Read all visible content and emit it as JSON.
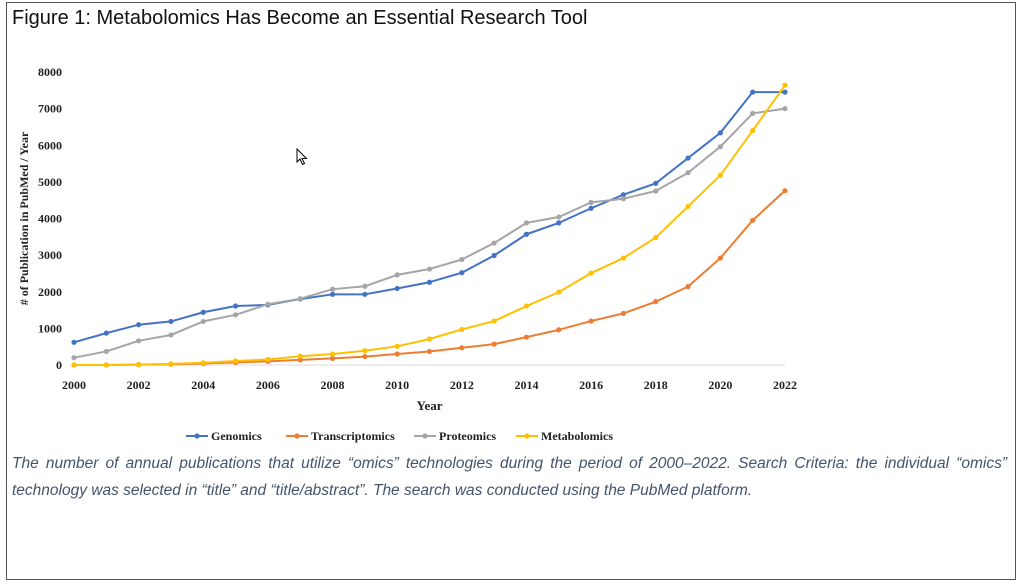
{
  "figure": {
    "title": "Figure 1: Metabolomics Has Become an Essential Research Tool",
    "caption": "The number of annual publications that utilize “omics” technologies during the period of 2000–2022. Search Criteria: the individual “omics” technology was selected in “title” and “title/abstract”. The search was conducted using the PubMed platform."
  },
  "chart_data": {
    "type": "line",
    "title": "",
    "xlabel": "Year",
    "ylabel": "# of Publication in PubMed / Year",
    "x": [
      2000,
      2001,
      2002,
      2003,
      2004,
      2005,
      2006,
      2007,
      2008,
      2009,
      2010,
      2011,
      2012,
      2013,
      2014,
      2015,
      2016,
      2017,
      2018,
      2019,
      2020,
      2021,
      2022
    ],
    "x_ticks": [
      "2000",
      "2002",
      "2004",
      "2006",
      "2008",
      "2010",
      "2012",
      "2014",
      "2016",
      "2018",
      "2020",
      "2022"
    ],
    "y_ticks": [
      "0",
      "1000",
      "2000",
      "3000",
      "4000",
      "5000",
      "6000",
      "7000",
      "8000"
    ],
    "xlim": [
      2000,
      2022
    ],
    "ylim": [
      0,
      8000
    ],
    "grid": false,
    "legend_position": "bottom",
    "series": [
      {
        "name": "Genomics",
        "color": "#4472c4",
        "values": [
          620,
          870,
          1100,
          1190,
          1440,
          1610,
          1640,
          1800,
          1930,
          1930,
          2090,
          2260,
          2520,
          2990,
          3570,
          3880,
          4280,
          4650,
          4960,
          5650,
          6340,
          7450,
          7450
        ]
      },
      {
        "name": "Transcriptomics",
        "color": "#ed7d31",
        "values": [
          0,
          0,
          10,
          20,
          40,
          70,
          100,
          140,
          180,
          230,
          300,
          370,
          470,
          570,
          760,
          960,
          1200,
          1410,
          1730,
          2140,
          2920,
          3950,
          4760
        ]
      },
      {
        "name": "Proteomics",
        "color": "#a5a5a5",
        "values": [
          200,
          370,
          660,
          820,
          1190,
          1370,
          1660,
          1810,
          2070,
          2150,
          2460,
          2620,
          2880,
          3330,
          3880,
          4040,
          4440,
          4540,
          4750,
          5250,
          5960,
          6870,
          7000
        ]
      },
      {
        "name": "Metabolomics",
        "color": "#ffc000",
        "values": [
          0,
          0,
          10,
          30,
          60,
          110,
          150,
          240,
          300,
          390,
          510,
          710,
          970,
          1200,
          1610,
          1990,
          2510,
          2920,
          3480,
          4330,
          5180,
          6400,
          7640
        ]
      }
    ]
  }
}
